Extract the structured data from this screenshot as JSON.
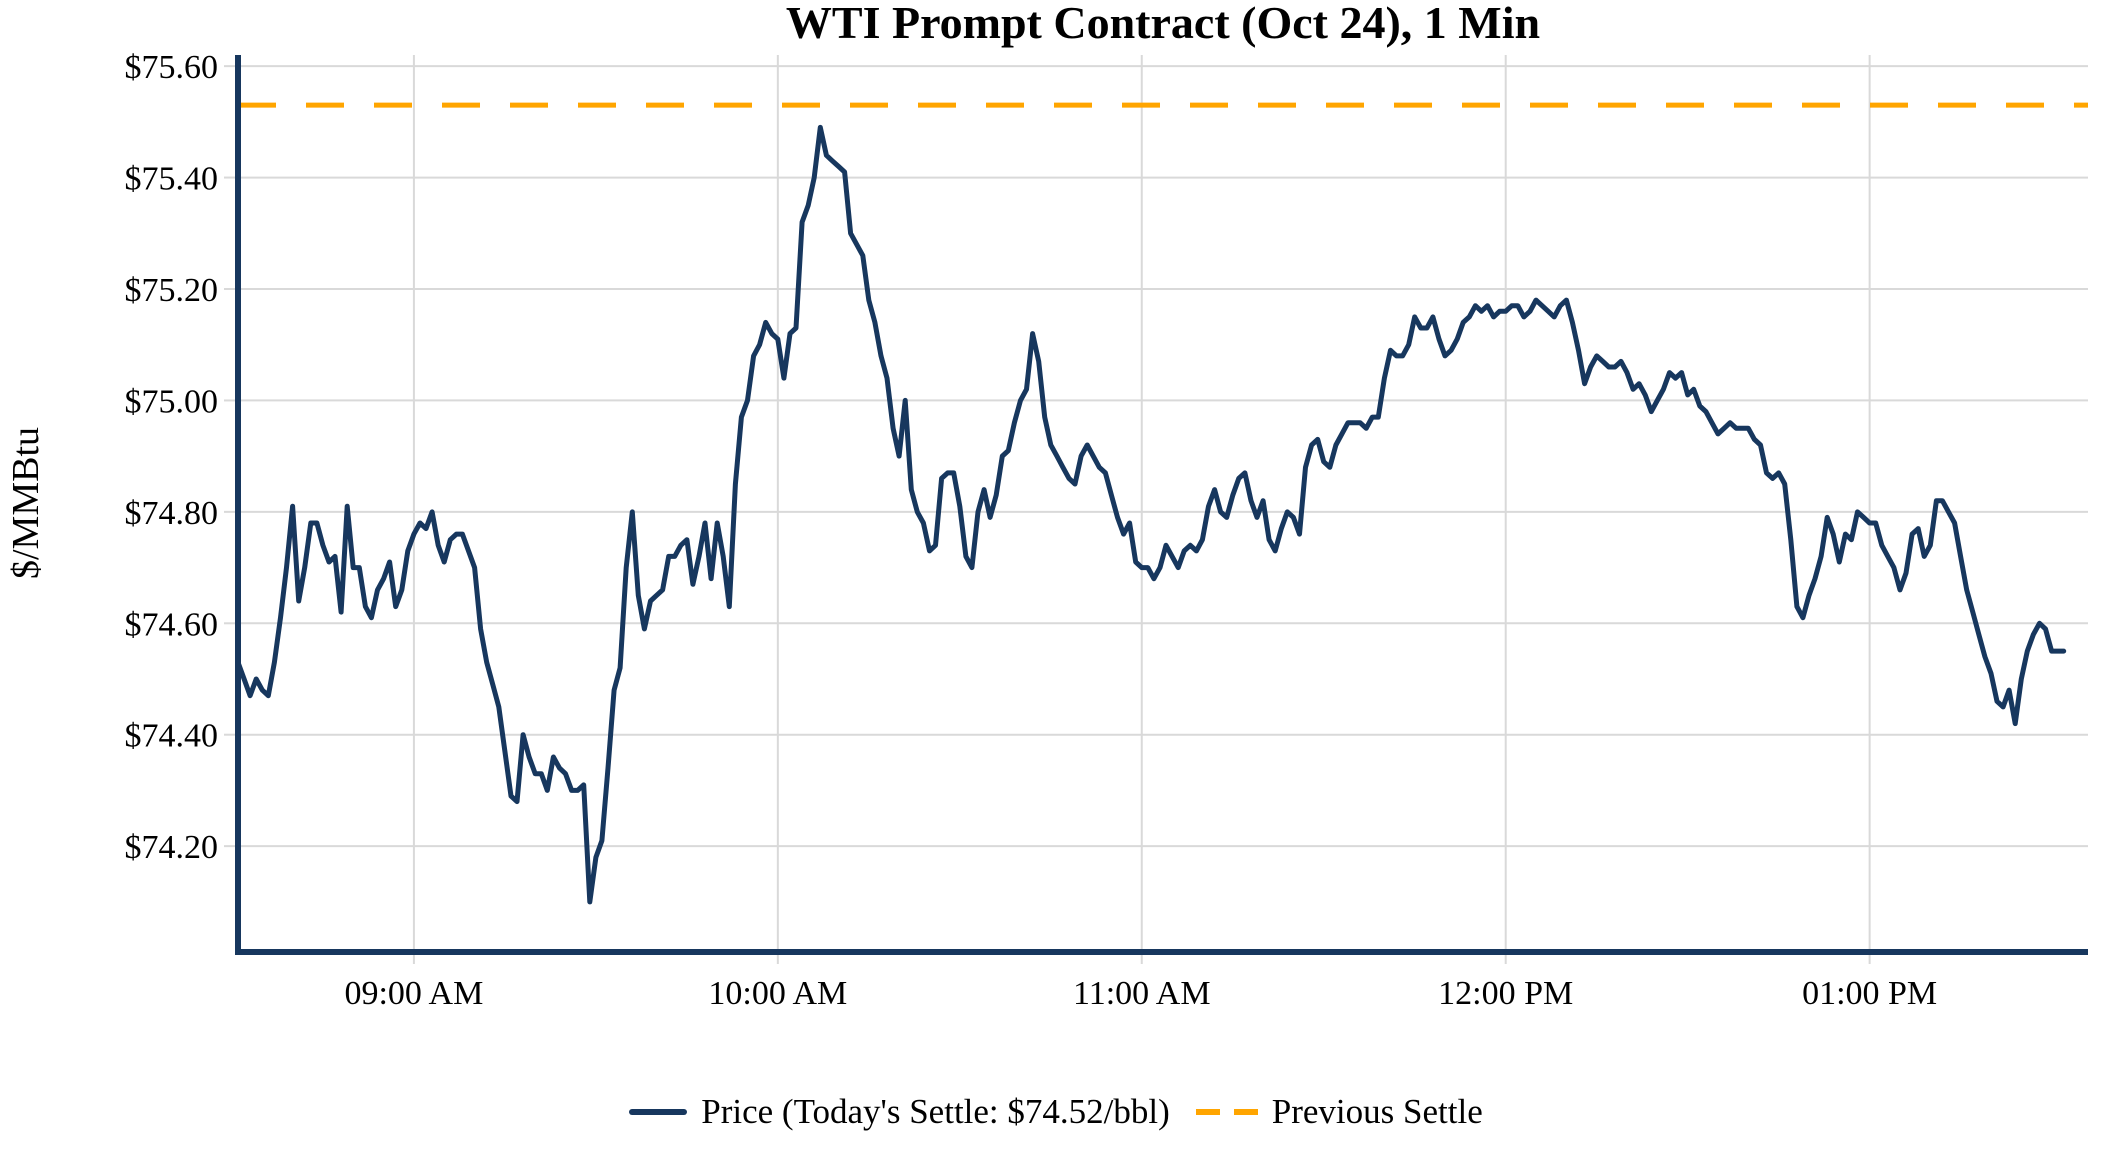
{
  "title": "WTI Prompt Contract (Oct 24), 1 Min",
  "legend": {
    "price_label": "Price (Today's Settle: $74.52/bbl)",
    "previous_settle_label": "Previous Settle"
  },
  "colors": {
    "price_line": "#17375E",
    "previous_settle_line": "#FFA500",
    "grid": "#D9D9D9",
    "axis": "#17375E",
    "text": "#000000"
  },
  "chart_data": {
    "type": "line",
    "title": "WTI Prompt Contract (Oct 24), 1 Min",
    "xlabel": "",
    "ylabel": "$/MMBtu",
    "grid": true,
    "legend_position": "bottom",
    "ylim": [
      74.01,
      75.62
    ],
    "x_range": {
      "start": "08:31",
      "end": "13:36"
    },
    "y_tick_values": [
      74.2,
      74.4,
      74.6,
      74.8,
      75.0,
      75.2,
      75.4,
      75.6
    ],
    "y_tick_labels": [
      "$74.20",
      "$74.40",
      "$74.60",
      "$74.80",
      "$75.00",
      "$75.20",
      "$75.40",
      "$75.60"
    ],
    "x_tick_times": [
      "09:00",
      "10:00",
      "11:00",
      "12:00",
      "13:00"
    ],
    "x_tick_labels": [
      "09:00 AM",
      "10:00 AM",
      "11:00 AM",
      "12:00 PM",
      "01:00 PM"
    ],
    "previous_settle": 75.53,
    "todays_settle": 74.52,
    "series": [
      {
        "name": "Price",
        "start_time": "08:31",
        "interval_minutes": 1,
        "values": [
          74.53,
          74.5,
          74.47,
          74.5,
          74.48,
          74.47,
          74.53,
          74.61,
          74.7,
          74.81,
          74.64,
          74.7,
          74.78,
          74.78,
          74.74,
          74.71,
          74.72,
          74.62,
          74.81,
          74.7,
          74.7,
          74.63,
          74.61,
          74.66,
          74.68,
          74.71,
          74.63,
          74.66,
          74.73,
          74.76,
          74.78,
          74.77,
          74.8,
          74.74,
          74.71,
          74.75,
          74.76,
          74.76,
          74.73,
          74.7,
          74.59,
          74.53,
          74.49,
          74.45,
          74.37,
          74.29,
          74.28,
          74.4,
          74.36,
          74.33,
          74.33,
          74.3,
          74.36,
          74.34,
          74.33,
          74.3,
          74.3,
          74.31,
          74.1,
          74.18,
          74.21,
          74.34,
          74.48,
          74.52,
          74.7,
          74.8,
          74.65,
          74.59,
          74.64,
          74.65,
          74.66,
          74.72,
          74.72,
          74.74,
          74.75,
          74.67,
          74.72,
          74.78,
          74.68,
          74.78,
          74.72,
          74.63,
          74.85,
          74.97,
          75.0,
          75.08,
          75.1,
          75.14,
          75.12,
          75.11,
          75.04,
          75.12,
          75.13,
          75.32,
          75.35,
          75.4,
          75.49,
          75.44,
          75.43,
          75.42,
          75.41,
          75.3,
          75.28,
          75.26,
          75.18,
          75.14,
          75.08,
          75.04,
          74.95,
          74.9,
          75.0,
          74.84,
          74.8,
          74.78,
          74.73,
          74.74,
          74.86,
          74.87,
          74.87,
          74.81,
          74.72,
          74.7,
          74.8,
          74.84,
          74.79,
          74.83,
          74.9,
          74.91,
          74.96,
          75.0,
          75.02,
          75.12,
          75.07,
          74.97,
          74.92,
          74.9,
          74.88,
          74.86,
          74.85,
          74.9,
          74.92,
          74.9,
          74.88,
          74.87,
          74.83,
          74.79,
          74.76,
          74.78,
          74.71,
          74.7,
          74.7,
          74.68,
          74.7,
          74.74,
          74.72,
          74.7,
          74.73,
          74.74,
          74.73,
          74.75,
          74.81,
          74.84,
          74.8,
          74.79,
          74.83,
          74.86,
          74.87,
          74.82,
          74.79,
          74.82,
          74.75,
          74.73,
          74.77,
          74.8,
          74.79,
          74.76,
          74.88,
          74.92,
          74.93,
          74.89,
          74.88,
          74.92,
          74.94,
          74.96,
          74.96,
          74.96,
          74.95,
          74.97,
          74.97,
          75.04,
          75.09,
          75.08,
          75.08,
          75.1,
          75.15,
          75.13,
          75.13,
          75.15,
          75.11,
          75.08,
          75.09,
          75.11,
          75.14,
          75.15,
          75.17,
          75.16,
          75.17,
          75.15,
          75.16,
          75.16,
          75.17,
          75.17,
          75.15,
          75.16,
          75.18,
          75.17,
          75.16,
          75.15,
          75.17,
          75.18,
          75.14,
          75.09,
          75.03,
          75.06,
          75.08,
          75.07,
          75.06,
          75.06,
          75.07,
          75.05,
          75.02,
          75.03,
          75.01,
          74.98,
          75.0,
          75.02,
          75.05,
          75.04,
          75.05,
          75.01,
          75.02,
          74.99,
          74.98,
          74.96,
          74.94,
          74.95,
          74.96,
          74.95,
          74.95,
          74.95,
          74.93,
          74.92,
          74.87,
          74.86,
          74.87,
          74.85,
          74.75,
          74.63,
          74.61,
          74.65,
          74.68,
          74.72,
          74.79,
          74.76,
          74.71,
          74.76,
          74.75,
          74.8,
          74.79,
          74.78,
          74.78,
          74.74,
          74.72,
          74.7,
          74.66,
          74.69,
          74.76,
          74.77,
          74.72,
          74.74,
          74.82,
          74.82,
          74.8,
          74.78,
          74.72,
          74.66,
          74.62,
          74.58,
          74.54,
          74.51,
          74.46,
          74.45,
          74.48,
          74.42,
          74.5,
          74.55,
          74.58,
          74.6,
          74.59,
          74.55,
          74.55,
          74.55
        ]
      },
      {
        "name": "Previous Settle",
        "type": "hline",
        "value": 75.53
      }
    ]
  }
}
